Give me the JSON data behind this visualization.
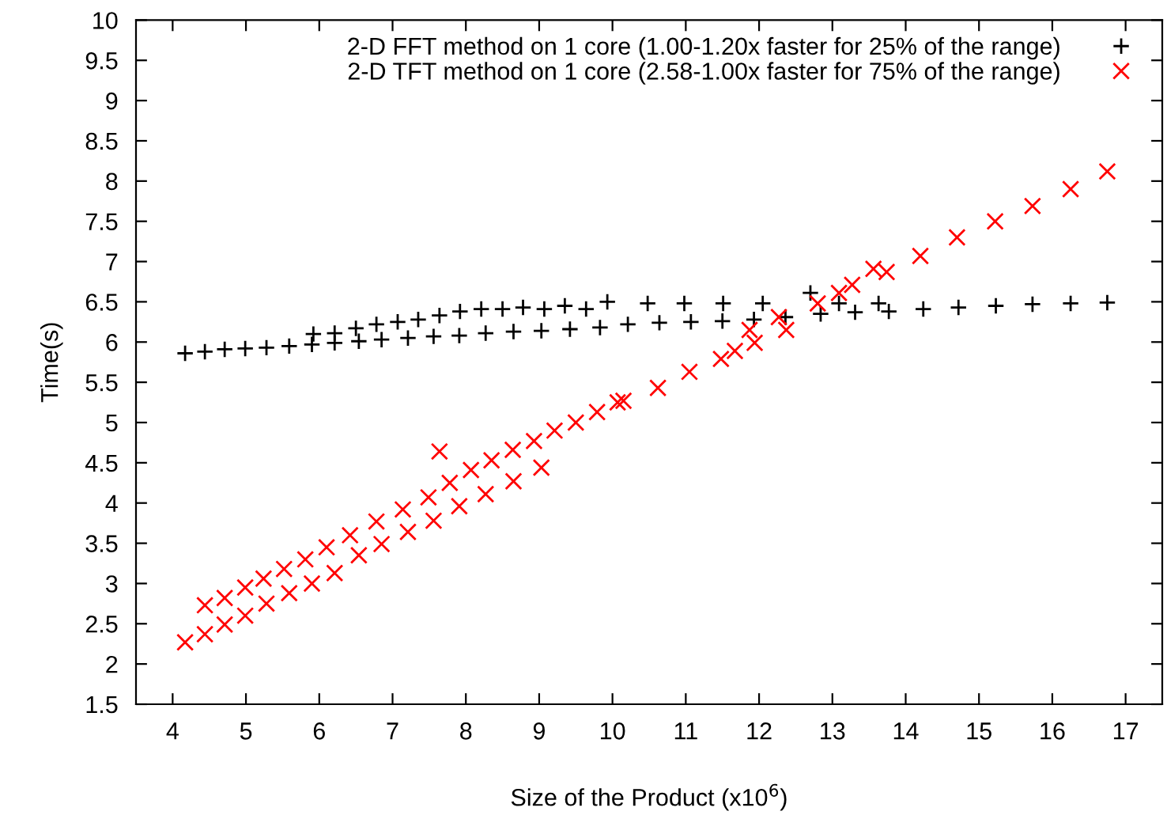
{
  "chart_data": {
    "type": "scatter",
    "xlabel": "Size of the Product (x10$^{6}$)",
    "ylabel": "Time(s)",
    "xlim": [
      3.5,
      17.5
    ],
    "xticks": [
      4,
      5,
      6,
      7,
      8,
      9,
      10,
      11,
      12,
      13,
      14,
      15,
      16,
      17
    ],
    "ylim": [
      1.5,
      10
    ],
    "yticks": [
      1.5,
      2,
      2.5,
      3,
      3.5,
      4,
      4.5,
      5,
      5.5,
      6,
      6.5,
      7,
      7.5,
      8,
      8.5,
      9,
      9.5,
      10
    ],
    "legend": "top right",
    "grid": false,
    "series": [
      {
        "name": "2-D FFT method on 1 core (1.00-1.20x faster for 25% of the range)",
        "color": "#000000",
        "marker": "cross",
        "x": [
          4.17,
          4.44,
          4.71,
          4.99,
          5.28,
          5.59,
          5.9,
          6.21,
          6.54,
          6.85,
          7.21,
          7.56,
          7.91,
          8.27,
          8.65,
          9.03,
          9.42,
          9.83,
          10.21,
          10.64,
          11.07,
          11.5,
          11.93,
          12.36,
          12.84,
          13.31,
          13.77,
          14.24,
          14.72,
          15.23,
          15.73,
          16.25,
          16.75,
          5.92,
          6.21,
          6.5,
          6.78,
          7.07,
          7.35,
          7.64,
          7.92,
          8.21,
          8.5,
          8.78,
          9.07,
          9.35,
          9.64,
          9.93,
          10.48,
          10.98,
          11.51,
          12.05,
          12.7,
          13.09,
          13.63
        ],
        "values": [
          5.86,
          5.88,
          5.91,
          5.92,
          5.93,
          5.95,
          5.97,
          5.99,
          6.01,
          6.03,
          6.05,
          6.07,
          6.08,
          6.11,
          6.13,
          6.14,
          6.16,
          6.18,
          6.22,
          6.24,
          6.25,
          6.26,
          6.28,
          6.31,
          6.35,
          6.37,
          6.38,
          6.41,
          6.43,
          6.45,
          6.47,
          6.48,
          6.49,
          6.1,
          6.11,
          6.17,
          6.22,
          6.25,
          6.28,
          6.33,
          6.38,
          6.41,
          6.41,
          6.43,
          6.41,
          6.45,
          6.41,
          6.5,
          6.48,
          6.48,
          6.48,
          6.48,
          6.61,
          6.48,
          6.48
        ]
      },
      {
        "name": "2-D TFT method on 1 core (2.58-1.00x faster for 75% of the range)",
        "color": "#ff0000",
        "marker": "x",
        "x": [
          4.17,
          4.44,
          4.71,
          4.99,
          5.28,
          5.59,
          5.9,
          6.21,
          6.54,
          6.85,
          7.21,
          7.56,
          7.91,
          8.27,
          8.65,
          9.03,
          4.44,
          4.71,
          4.99,
          5.24,
          5.52,
          5.81,
          6.1,
          6.42,
          6.78,
          7.14,
          7.49,
          7.78,
          8.07,
          8.35,
          8.64,
          8.93,
          9.21,
          9.5,
          9.79,
          10.07,
          7.64,
          10.15,
          10.62,
          11.05,
          11.48,
          11.94,
          12.37,
          12.8,
          13.27,
          13.74,
          14.2,
          14.7,
          15.22,
          15.73,
          16.25,
          16.75,
          11.67,
          11.87,
          12.27,
          13.09,
          13.56
        ],
        "values": [
          2.27,
          2.37,
          2.49,
          2.6,
          2.75,
          2.88,
          3.0,
          3.13,
          3.35,
          3.49,
          3.64,
          3.78,
          3.96,
          4.11,
          4.27,
          4.44,
          2.73,
          2.82,
          2.95,
          3.06,
          3.18,
          3.3,
          3.45,
          3.6,
          3.77,
          3.92,
          4.07,
          4.25,
          4.41,
          4.53,
          4.66,
          4.77,
          4.9,
          5.0,
          5.13,
          5.25,
          4.64,
          5.27,
          5.43,
          5.63,
          5.79,
          5.99,
          6.15,
          6.48,
          6.71,
          6.87,
          7.07,
          7.3,
          7.5,
          7.69,
          7.9,
          8.12,
          5.89,
          6.15,
          6.31,
          6.61,
          6.91
        ]
      }
    ]
  }
}
